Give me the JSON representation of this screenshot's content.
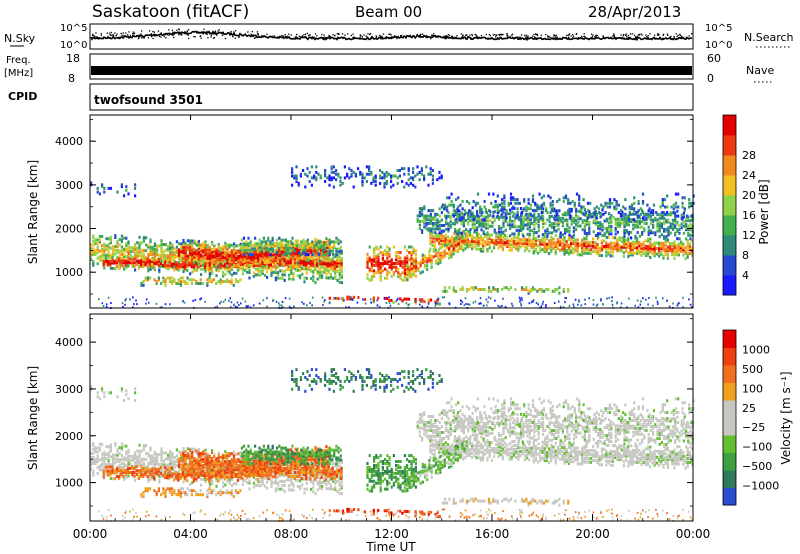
{
  "header": {
    "station": "Saskatoon (fitACF)",
    "beam": "Beam 00",
    "date": "28/Apr/2013"
  },
  "chart_data": [
    {
      "type": "line",
      "panel": "noise",
      "left_label": "N.Sky",
      "right_label": "N.Search",
      "left_ticks": [
        "10^5",
        "10^0"
      ],
      "right_ticks": [
        "10^5",
        "10^0"
      ],
      "scale": "log",
      "ylim": [
        1,
        100000
      ],
      "color": "#000000"
    },
    {
      "type": "line",
      "panel": "freq-nave",
      "left_label": "Freq.",
      "left_unit": "[MHz]",
      "left_ticks": [
        "18",
        "8"
      ],
      "left_ylim": [
        8,
        18
      ],
      "right_label": "Nave",
      "right_ticks": [
        "60",
        "0"
      ],
      "right_ylim": [
        0,
        60
      ],
      "color": "#000000"
    },
    {
      "type": "table",
      "panel": "cpid",
      "label": "CPID",
      "program": "twofsound 3501"
    },
    {
      "type": "heatmap",
      "panel": "power",
      "ylabel": "Slant Range [km]",
      "yticks": [
        "1000",
        "2000",
        "3000",
        "4000"
      ],
      "ylim": [
        180,
        4600
      ],
      "colorbar_label": "Power [dB]",
      "colorbar_ticks": [
        "4",
        "8",
        "12",
        "16",
        "20",
        "24",
        "28"
      ],
      "colorbar_colors": [
        "#1a1aff",
        "#274bd0",
        "#2e8b7a",
        "#42b04e",
        "#90d04a",
        "#f0c020",
        "#f08a20",
        "#ee3a10",
        "#e50000"
      ]
    },
    {
      "type": "heatmap",
      "panel": "velocity",
      "ylabel": "Slant Range [km]",
      "yticks": [
        "1000",
        "2000",
        "3000",
        "4000"
      ],
      "ylim": [
        180,
        4600
      ],
      "colorbar_label": "Velocity [m s⁻¹]",
      "colorbar_ticks": [
        "1000",
        "500",
        "100",
        "25",
        "−25",
        "−100",
        "−500",
        "−1000"
      ],
      "colorbar_colors": [
        "#2a4cd0",
        "#2f7a5a",
        "#3ea040",
        "#62c030",
        "#c8c8c2",
        "#c8c8c2",
        "#f0a020",
        "#f07020",
        "#ee4010",
        "#e80000"
      ]
    }
  ],
  "xaxis": {
    "label": "Time UT",
    "ticks": [
      "00:00",
      "04:00",
      "08:00",
      "12:00",
      "16:00",
      "20:00",
      "00:00"
    ]
  }
}
